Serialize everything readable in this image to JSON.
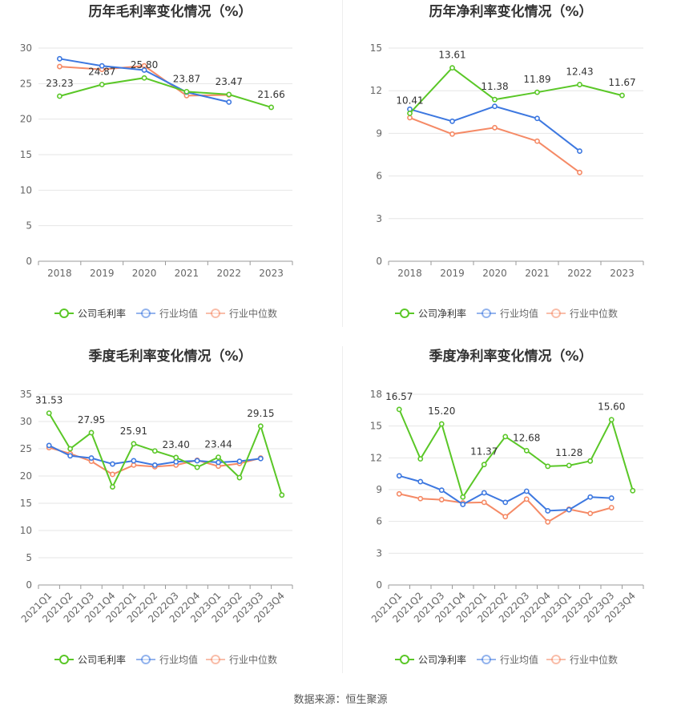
{
  "footer": {
    "source": "数据来源：恒生聚源"
  },
  "colors": {
    "company": "#5ac727",
    "industry_avg": "#3d78e0",
    "industry_median": "#f58a66"
  },
  "chart_data": [
    {
      "id": "annual-gross",
      "type": "line",
      "title": "历年毛利率变化情况（%）",
      "categories": [
        "2018",
        "2019",
        "2020",
        "2021",
        "2022",
        "2023"
      ],
      "ylim": [
        0,
        30
      ],
      "yticks": [
        0,
        5,
        10,
        15,
        20,
        25,
        30
      ],
      "grid": true,
      "legend_position": "bottom",
      "series": [
        {
          "name": "公司毛利率",
          "color": "#5ac727",
          "values": [
            23.23,
            24.87,
            25.8,
            23.87,
            23.47,
            21.66
          ],
          "labels": [
            "23.23",
            "24.87",
            "25.80",
            "23.87",
            "23.47",
            "21.66"
          ]
        },
        {
          "name": "行业均值",
          "color": "#3d78e0",
          "values": [
            28.5,
            27.5,
            26.9,
            23.8,
            22.4,
            null
          ]
        },
        {
          "name": "行业中位数",
          "color": "#f58a66",
          "values": [
            27.4,
            27.0,
            27.5,
            23.3,
            23.4,
            null
          ]
        }
      ]
    },
    {
      "id": "annual-net",
      "type": "line",
      "title": "历年净利率变化情况（%）",
      "categories": [
        "2018",
        "2019",
        "2020",
        "2021",
        "2022",
        "2023"
      ],
      "ylim": [
        0,
        15
      ],
      "yticks": [
        0,
        3,
        6,
        9,
        12,
        15
      ],
      "grid": true,
      "legend_position": "bottom",
      "series": [
        {
          "name": "公司净利率",
          "color": "#5ac727",
          "values": [
            10.41,
            13.61,
            11.38,
            11.89,
            12.43,
            11.67
          ],
          "labels": [
            "10.41",
            "13.61",
            "11.38",
            "11.89",
            "12.43",
            "11.67"
          ]
        },
        {
          "name": "行业均值",
          "color": "#3d78e0",
          "values": [
            10.7,
            9.85,
            10.9,
            10.05,
            7.75,
            null
          ]
        },
        {
          "name": "行业中位数",
          "color": "#f58a66",
          "values": [
            10.1,
            8.95,
            9.4,
            8.45,
            6.25,
            null
          ]
        }
      ]
    },
    {
      "id": "quarterly-gross",
      "type": "line",
      "title": "季度毛利率变化情况（%）",
      "categories": [
        "2021Q1",
        "2021Q2",
        "2021Q3",
        "2021Q4",
        "2022Q1",
        "2022Q2",
        "2022Q3",
        "2022Q4",
        "2023Q1",
        "2023Q2",
        "2023Q3",
        "2023Q4"
      ],
      "ylim": [
        0,
        35
      ],
      "yticks": [
        0,
        5,
        10,
        15,
        20,
        25,
        30,
        35
      ],
      "grid": true,
      "legend_position": "bottom",
      "series": [
        {
          "name": "公司毛利率",
          "color": "#5ac727",
          "values": [
            31.53,
            25.0,
            27.95,
            18.0,
            25.91,
            24.6,
            23.4,
            21.6,
            23.44,
            19.7,
            29.15,
            16.5
          ],
          "labels": [
            "31.53",
            "",
            "27.95",
            "",
            "25.91",
            "",
            "23.40",
            "",
            "23.44",
            "",
            "29.15",
            ""
          ]
        },
        {
          "name": "行业均值",
          "color": "#3d78e0",
          "values": [
            25.6,
            23.7,
            23.3,
            22.2,
            22.8,
            22.0,
            22.6,
            22.8,
            22.5,
            22.7,
            23.2,
            null
          ]
        },
        {
          "name": "行业中位数",
          "color": "#f58a66",
          "values": [
            25.2,
            24.1,
            22.7,
            20.3,
            22.0,
            21.7,
            22.0,
            22.9,
            21.8,
            22.3,
            23.3,
            null
          ]
        }
      ]
    },
    {
      "id": "quarterly-net",
      "type": "line",
      "title": "季度净利率变化情况（%）",
      "categories": [
        "2021Q1",
        "2021Q2",
        "2021Q3",
        "2021Q4",
        "2022Q1",
        "2022Q2",
        "2022Q3",
        "2022Q4",
        "2023Q1",
        "2023Q2",
        "2023Q3",
        "2023Q4"
      ],
      "ylim": [
        0,
        18
      ],
      "yticks": [
        0,
        3,
        6,
        9,
        12,
        15,
        18
      ],
      "grid": true,
      "legend_position": "bottom",
      "series": [
        {
          "name": "公司净利率",
          "color": "#5ac727",
          "values": [
            16.57,
            11.9,
            15.2,
            8.3,
            11.37,
            14.0,
            12.68,
            11.2,
            11.28,
            11.7,
            15.6,
            8.9
          ],
          "labels": [
            "16.57",
            "",
            "15.20",
            "",
            "11.37",
            "",
            "12.68",
            "",
            "11.28",
            "",
            "15.60",
            ""
          ]
        },
        {
          "name": "行业均值",
          "color": "#3d78e0",
          "values": [
            10.3,
            9.75,
            8.95,
            7.6,
            8.7,
            7.8,
            8.85,
            7.0,
            7.1,
            8.3,
            8.2,
            null
          ]
        },
        {
          "name": "行业中位数",
          "color": "#f58a66",
          "values": [
            8.6,
            8.15,
            8.05,
            7.75,
            7.8,
            6.45,
            8.1,
            5.95,
            7.15,
            6.75,
            7.3,
            null
          ]
        }
      ]
    }
  ]
}
